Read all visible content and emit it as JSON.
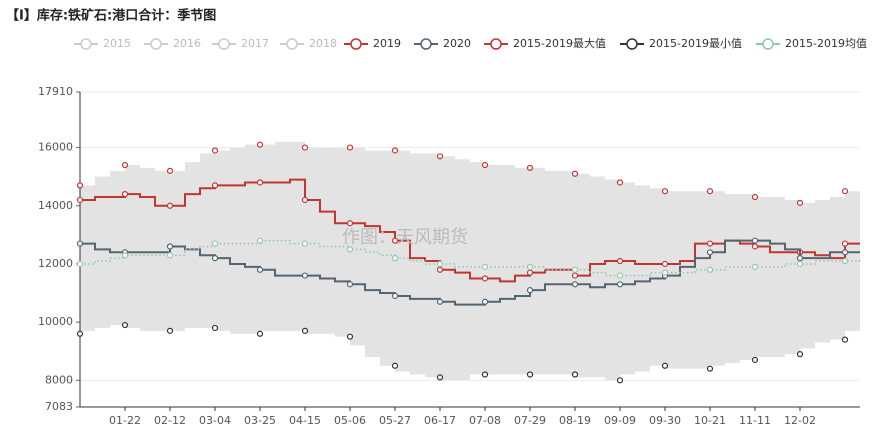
{
  "chart_data": {
    "type": "line",
    "step": true,
    "title": "【I】库存:铁矿石:港口合计：季节图",
    "watermark": "作图：天风期货",
    "hidden_series": [
      "2015",
      "2016",
      "2017",
      "2018"
    ],
    "categories": [
      null,
      null,
      null,
      "01-22",
      null,
      null,
      "02-12",
      null,
      null,
      "03-04",
      null,
      null,
      "03-25",
      null,
      null,
      "04-15",
      null,
      null,
      "05-06",
      null,
      null,
      "05-27",
      null,
      null,
      "06-17",
      null,
      null,
      "07-08",
      null,
      null,
      "07-29",
      null,
      null,
      "08-19",
      null,
      null,
      "09-09",
      null,
      null,
      "09-30",
      null,
      null,
      "10-21",
      null,
      null,
      "11-11",
      null,
      null,
      "12-02",
      null,
      null,
      null,
      null
    ],
    "ylim": [
      7083,
      17910
    ],
    "yticks": [
      7083,
      8000,
      10000,
      12000,
      14000,
      16000,
      17910
    ],
    "grid": true,
    "band": {
      "fill": "#e3e3e3"
    },
    "series": [
      {
        "name": "2019",
        "color": "#c23531",
        "style": "solid",
        "values": [
          14200,
          14300,
          14300,
          14400,
          14300,
          14000,
          14000,
          14400,
          14600,
          14700,
          14700,
          14800,
          14800,
          14800,
          14900,
          14200,
          13800,
          13400,
          13400,
          13300,
          13100,
          12800,
          12200,
          12100,
          11800,
          11700,
          11500,
          11500,
          11400,
          11600,
          11700,
          11800,
          11800,
          11600,
          12000,
          12100,
          12100,
          12000,
          12000,
          12000,
          12100,
          12700,
          12700,
          12800,
          12700,
          12600,
          12400,
          12400,
          12400,
          12300,
          12200,
          12700,
          12700
        ]
      },
      {
        "name": "2020",
        "color": "#546570",
        "style": "solid",
        "values": [
          12700,
          12500,
          12400,
          12400,
          12400,
          12400,
          12600,
          12500,
          12300,
          12200,
          12000,
          11900,
          11800,
          11600,
          11600,
          11600,
          11500,
          11400,
          11300,
          11100,
          11000,
          10900,
          10800,
          10800,
          10700,
          10600,
          10600,
          10700,
          10800,
          10900,
          11100,
          11300,
          11300,
          11300,
          11200,
          11300,
          11300,
          11400,
          11500,
          11600,
          11900,
          12200,
          12400,
          12800,
          12800,
          12800,
          12700,
          12500,
          12200,
          12200,
          12400,
          12400,
          12400
        ]
      },
      {
        "name": "2015-2019最大值",
        "color": "#c23531",
        "style": "points",
        "values": [
          14700,
          15000,
          15200,
          15400,
          15300,
          15200,
          15200,
          15500,
          15800,
          15900,
          16000,
          16100,
          16100,
          16200,
          16200,
          16000,
          16000,
          16000,
          16000,
          15900,
          15900,
          15900,
          15800,
          15800,
          15700,
          15600,
          15500,
          15400,
          15400,
          15300,
          15300,
          15200,
          15200,
          15100,
          15000,
          14900,
          14800,
          14700,
          14600,
          14500,
          14500,
          14500,
          14500,
          14400,
          14400,
          14300,
          14300,
          14200,
          14100,
          14200,
          14300,
          14500,
          14700
        ]
      },
      {
        "name": "2015-2019最小值",
        "color": "#333333",
        "style": "points",
        "values": [
          9600,
          9700,
          9800,
          9900,
          9800,
          9700,
          9700,
          9700,
          9800,
          9800,
          9700,
          9600,
          9600,
          9700,
          9700,
          9700,
          9600,
          9600,
          9500,
          9200,
          8800,
          8500,
          8300,
          8200,
          8100,
          8000,
          8000,
          8200,
          8200,
          8200,
          8200,
          8200,
          8200,
          8200,
          8100,
          8100,
          8000,
          8200,
          8300,
          8500,
          8400,
          8400,
          8400,
          8500,
          8600,
          8700,
          8800,
          8800,
          8900,
          9100,
          9300,
          9400,
          9700
        ]
      },
      {
        "name": "2015-2019均值",
        "color": "#91c7ae",
        "style": "dotted",
        "values": [
          12000,
          12100,
          12200,
          12300,
          12300,
          12300,
          12300,
          12500,
          12600,
          12700,
          12700,
          12700,
          12800,
          12800,
          12700,
          12700,
          12600,
          12600,
          12500,
          12400,
          12300,
          12200,
          12100,
          12000,
          12000,
          11900,
          11900,
          11900,
          11900,
          11900,
          11900,
          11800,
          11800,
          11800,
          11700,
          11600,
          11600,
          11600,
          11700,
          11700,
          11700,
          11800,
          11800,
          11900,
          11900,
          11900,
          11900,
          12000,
          12000,
          12100,
          12100,
          12100,
          12200
        ]
      }
    ]
  }
}
